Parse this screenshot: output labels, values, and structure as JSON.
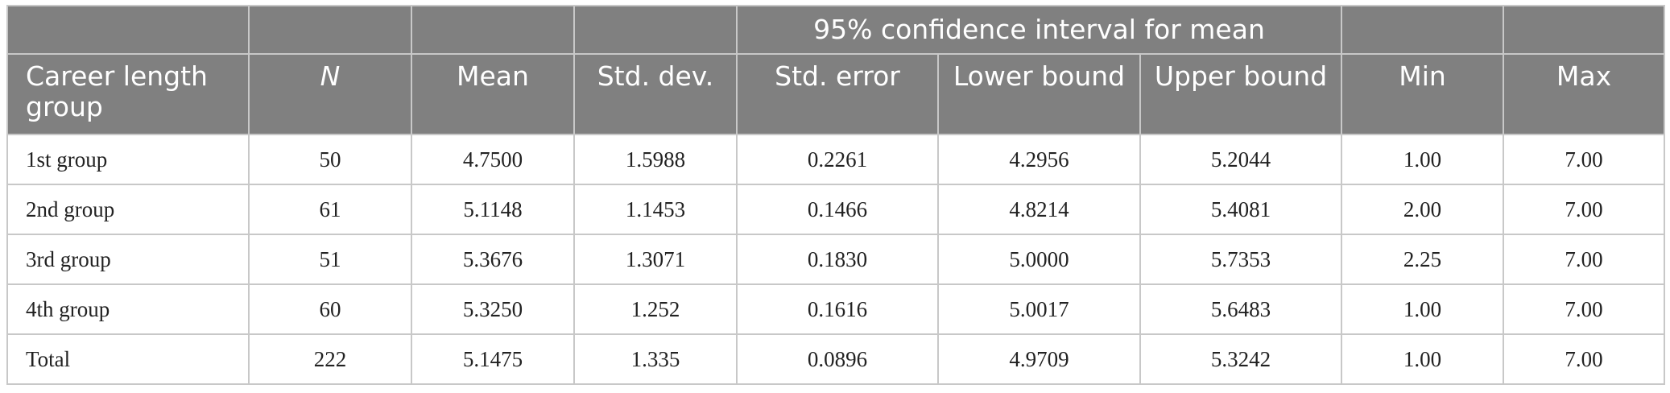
{
  "table": {
    "group_header": "95% confidence interval for mean",
    "columns": [
      "Career length group",
      "N",
      "Mean",
      "Std. dev.",
      "Std. error",
      "Lower bound",
      "Upper bound",
      "Min",
      "Max"
    ],
    "rows": [
      [
        "1st group",
        "50",
        "4.7500",
        "1.5988",
        "0.2261",
        "4.2956",
        "5.2044",
        "1.00",
        "7.00"
      ],
      [
        "2nd group",
        "61",
        "5.1148",
        "1.1453",
        "0.1466",
        "4.8214",
        "5.4081",
        "2.00",
        "7.00"
      ],
      [
        "3rd group",
        "51",
        "5.3676",
        "1.3071",
        "0.1830",
        "5.0000",
        "5.7353",
        "2.25",
        "7.00"
      ],
      [
        "4th group",
        "60",
        "5.3250",
        "1.252",
        "0.1616",
        "5.0017",
        "5.6483",
        "1.00",
        "7.00"
      ],
      [
        "Total",
        "222",
        "5.1475",
        "1.335",
        "0.0896",
        "4.9709",
        "5.3242",
        "1.00",
        "7.00"
      ]
    ]
  },
  "colors": {
    "header_bg": "#808080",
    "header_text": "#ffffff",
    "border": "#c8c8c8"
  }
}
